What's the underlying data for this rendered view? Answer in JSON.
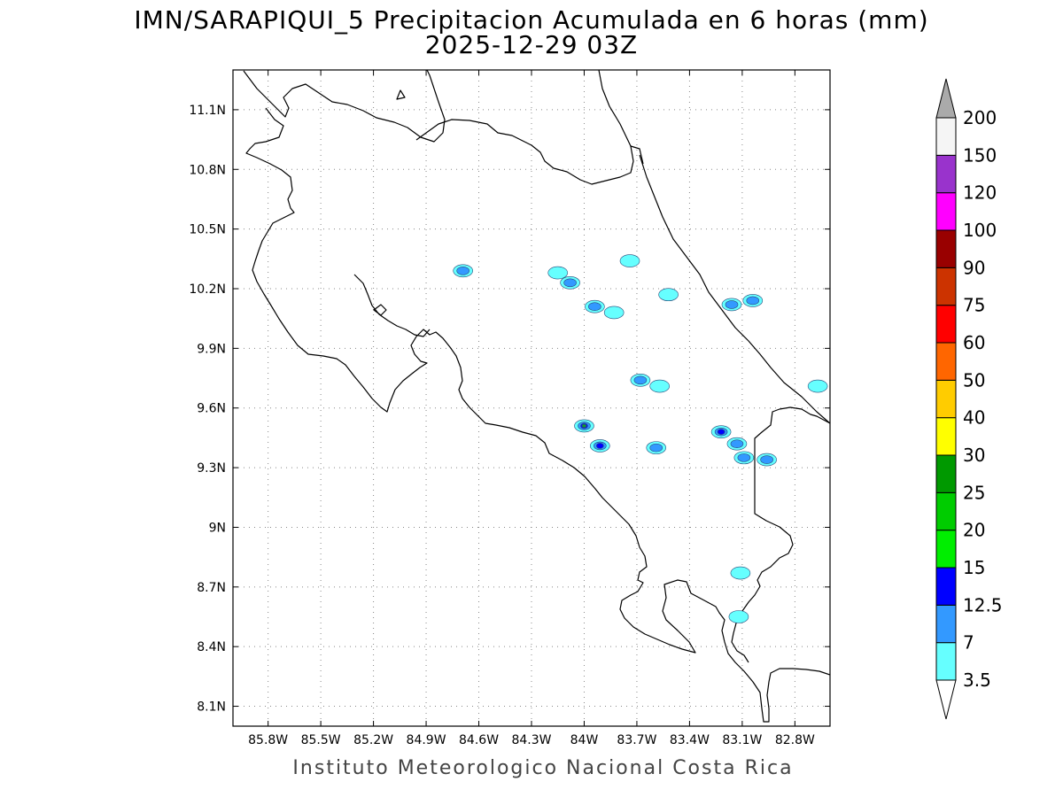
{
  "title": {
    "line1": "IMN/SARAPIQUI_5 Precipitacion Acumulada en 6 horas (mm)",
    "line2": "2025-12-29 03Z"
  },
  "credit": "Instituto Meteorologico Nacional Costa Rica",
  "map": {
    "lon_range": [
      -86.0,
      -82.6
    ],
    "lat_range": [
      8.0,
      11.3
    ],
    "lon_ticks": [
      {
        "value": -85.8,
        "label": "85.8W"
      },
      {
        "value": -85.5,
        "label": "85.5W"
      },
      {
        "value": -85.2,
        "label": "85.2W"
      },
      {
        "value": -84.9,
        "label": "84.9W"
      },
      {
        "value": -84.6,
        "label": "84.6W"
      },
      {
        "value": -84.3,
        "label": "84.3W"
      },
      {
        "value": -84.0,
        "label": "84W"
      },
      {
        "value": -83.7,
        "label": "83.7W"
      },
      {
        "value": -83.4,
        "label": "83.4W"
      },
      {
        "value": -83.1,
        "label": "83.1W"
      },
      {
        "value": -82.8,
        "label": "82.8W"
      }
    ],
    "lat_ticks": [
      {
        "value": 11.1,
        "label": "11.1N"
      },
      {
        "value": 10.8,
        "label": "10.8N"
      },
      {
        "value": 10.5,
        "label": "10.5N"
      },
      {
        "value": 10.2,
        "label": "10.2N"
      },
      {
        "value": 9.9,
        "label": "9.9N"
      },
      {
        "value": 9.6,
        "label": "9.6N"
      },
      {
        "value": 9.3,
        "label": "9.3N"
      },
      {
        "value": 9.0,
        "label": "9N"
      },
      {
        "value": 8.7,
        "label": "8.7N"
      },
      {
        "value": 8.4,
        "label": "8.4N"
      },
      {
        "value": 8.1,
        "label": "8.1N"
      }
    ],
    "grid": true
  },
  "colorbar": {
    "levels": [
      "3.5",
      "7",
      "12.5",
      "15",
      "20",
      "25",
      "30",
      "40",
      "50",
      "60",
      "75",
      "90",
      "100",
      "120",
      "150",
      "200"
    ],
    "colors": [
      "#66ffff",
      "#3399ff",
      "#0000ff",
      "#00ee00",
      "#00cc00",
      "#009900",
      "#ffff00",
      "#ffcc00",
      "#ff6600",
      "#ff0000",
      "#cc3300",
      "#990000",
      "#ff00ff",
      "#9933cc",
      "#f5f5f5"
    ],
    "under_color": "#ffffff",
    "over_color": "#aaaaaa"
  },
  "precip_cells": [
    {
      "lon": -84.69,
      "lat": 10.29,
      "peak": "7"
    },
    {
      "lon": -84.15,
      "lat": 10.28,
      "peak": "3.5"
    },
    {
      "lon": -84.08,
      "lat": 10.23,
      "peak": "7"
    },
    {
      "lon": -83.94,
      "lat": 10.11,
      "peak": "7"
    },
    {
      "lon": -83.83,
      "lat": 10.08,
      "peak": "3.5"
    },
    {
      "lon": -83.74,
      "lat": 10.34,
      "peak": "3.5"
    },
    {
      "lon": -83.52,
      "lat": 10.17,
      "peak": "3.5"
    },
    {
      "lon": -83.16,
      "lat": 10.12,
      "peak": "7"
    },
    {
      "lon": -83.04,
      "lat": 10.14,
      "peak": "7"
    },
    {
      "lon": -83.68,
      "lat": 9.74,
      "peak": "7"
    },
    {
      "lon": -84.0,
      "lat": 9.51,
      "peak": "20"
    },
    {
      "lon": -83.91,
      "lat": 9.41,
      "peak": "12.5"
    },
    {
      "lon": -83.59,
      "lat": 9.4,
      "peak": "7"
    },
    {
      "lon": -83.22,
      "lat": 9.48,
      "peak": "12.5"
    },
    {
      "lon": -83.13,
      "lat": 9.42,
      "peak": "7"
    },
    {
      "lon": -83.09,
      "lat": 9.35,
      "peak": "7"
    },
    {
      "lon": -82.96,
      "lat": 9.34,
      "peak": "7"
    },
    {
      "lon": -83.11,
      "lat": 8.77,
      "peak": "3.5"
    },
    {
      "lon": -83.12,
      "lat": 8.55,
      "peak": "3.5"
    },
    {
      "lon": -82.67,
      "lat": 9.71,
      "peak": "3.5"
    },
    {
      "lon": -83.57,
      "lat": 9.71,
      "peak": "3.5"
    }
  ]
}
